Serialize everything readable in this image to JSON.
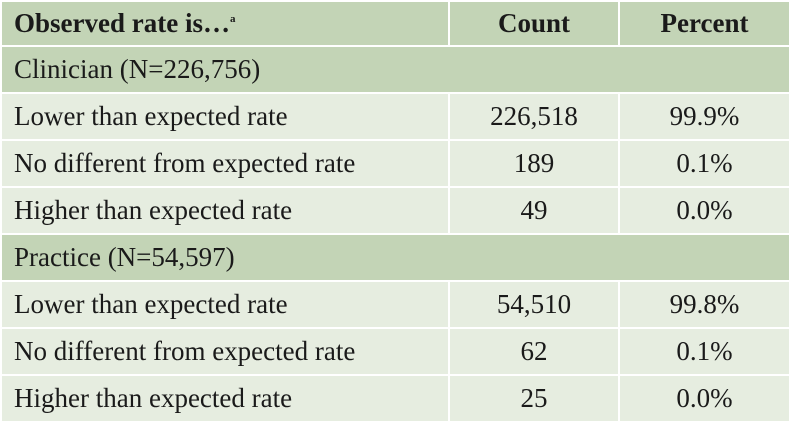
{
  "header": {
    "col1": "Observed rate is…",
    "col1_footnote": "a",
    "col2": "Count",
    "col3": "Percent"
  },
  "groups": [
    {
      "title": "Clinician (N=226,756)",
      "rows": [
        {
          "label": "Lower than expected rate",
          "count": "226,518",
          "percent": "99.9%"
        },
        {
          "label": "No different from expected rate",
          "count": "189",
          "percent": "0.1%"
        },
        {
          "label": "Higher than expected rate",
          "count": "49",
          "percent": "0.0%"
        }
      ]
    },
    {
      "title": "Practice (N=54,597)",
      "rows": [
        {
          "label": "Lower than expected rate",
          "count": "54,510",
          "percent": "99.8%"
        },
        {
          "label": "No different from expected rate",
          "count": "62",
          "percent": "0.1%"
        },
        {
          "label": "Higher than expected rate",
          "count": "25",
          "percent": "0.0%"
        }
      ]
    }
  ]
}
